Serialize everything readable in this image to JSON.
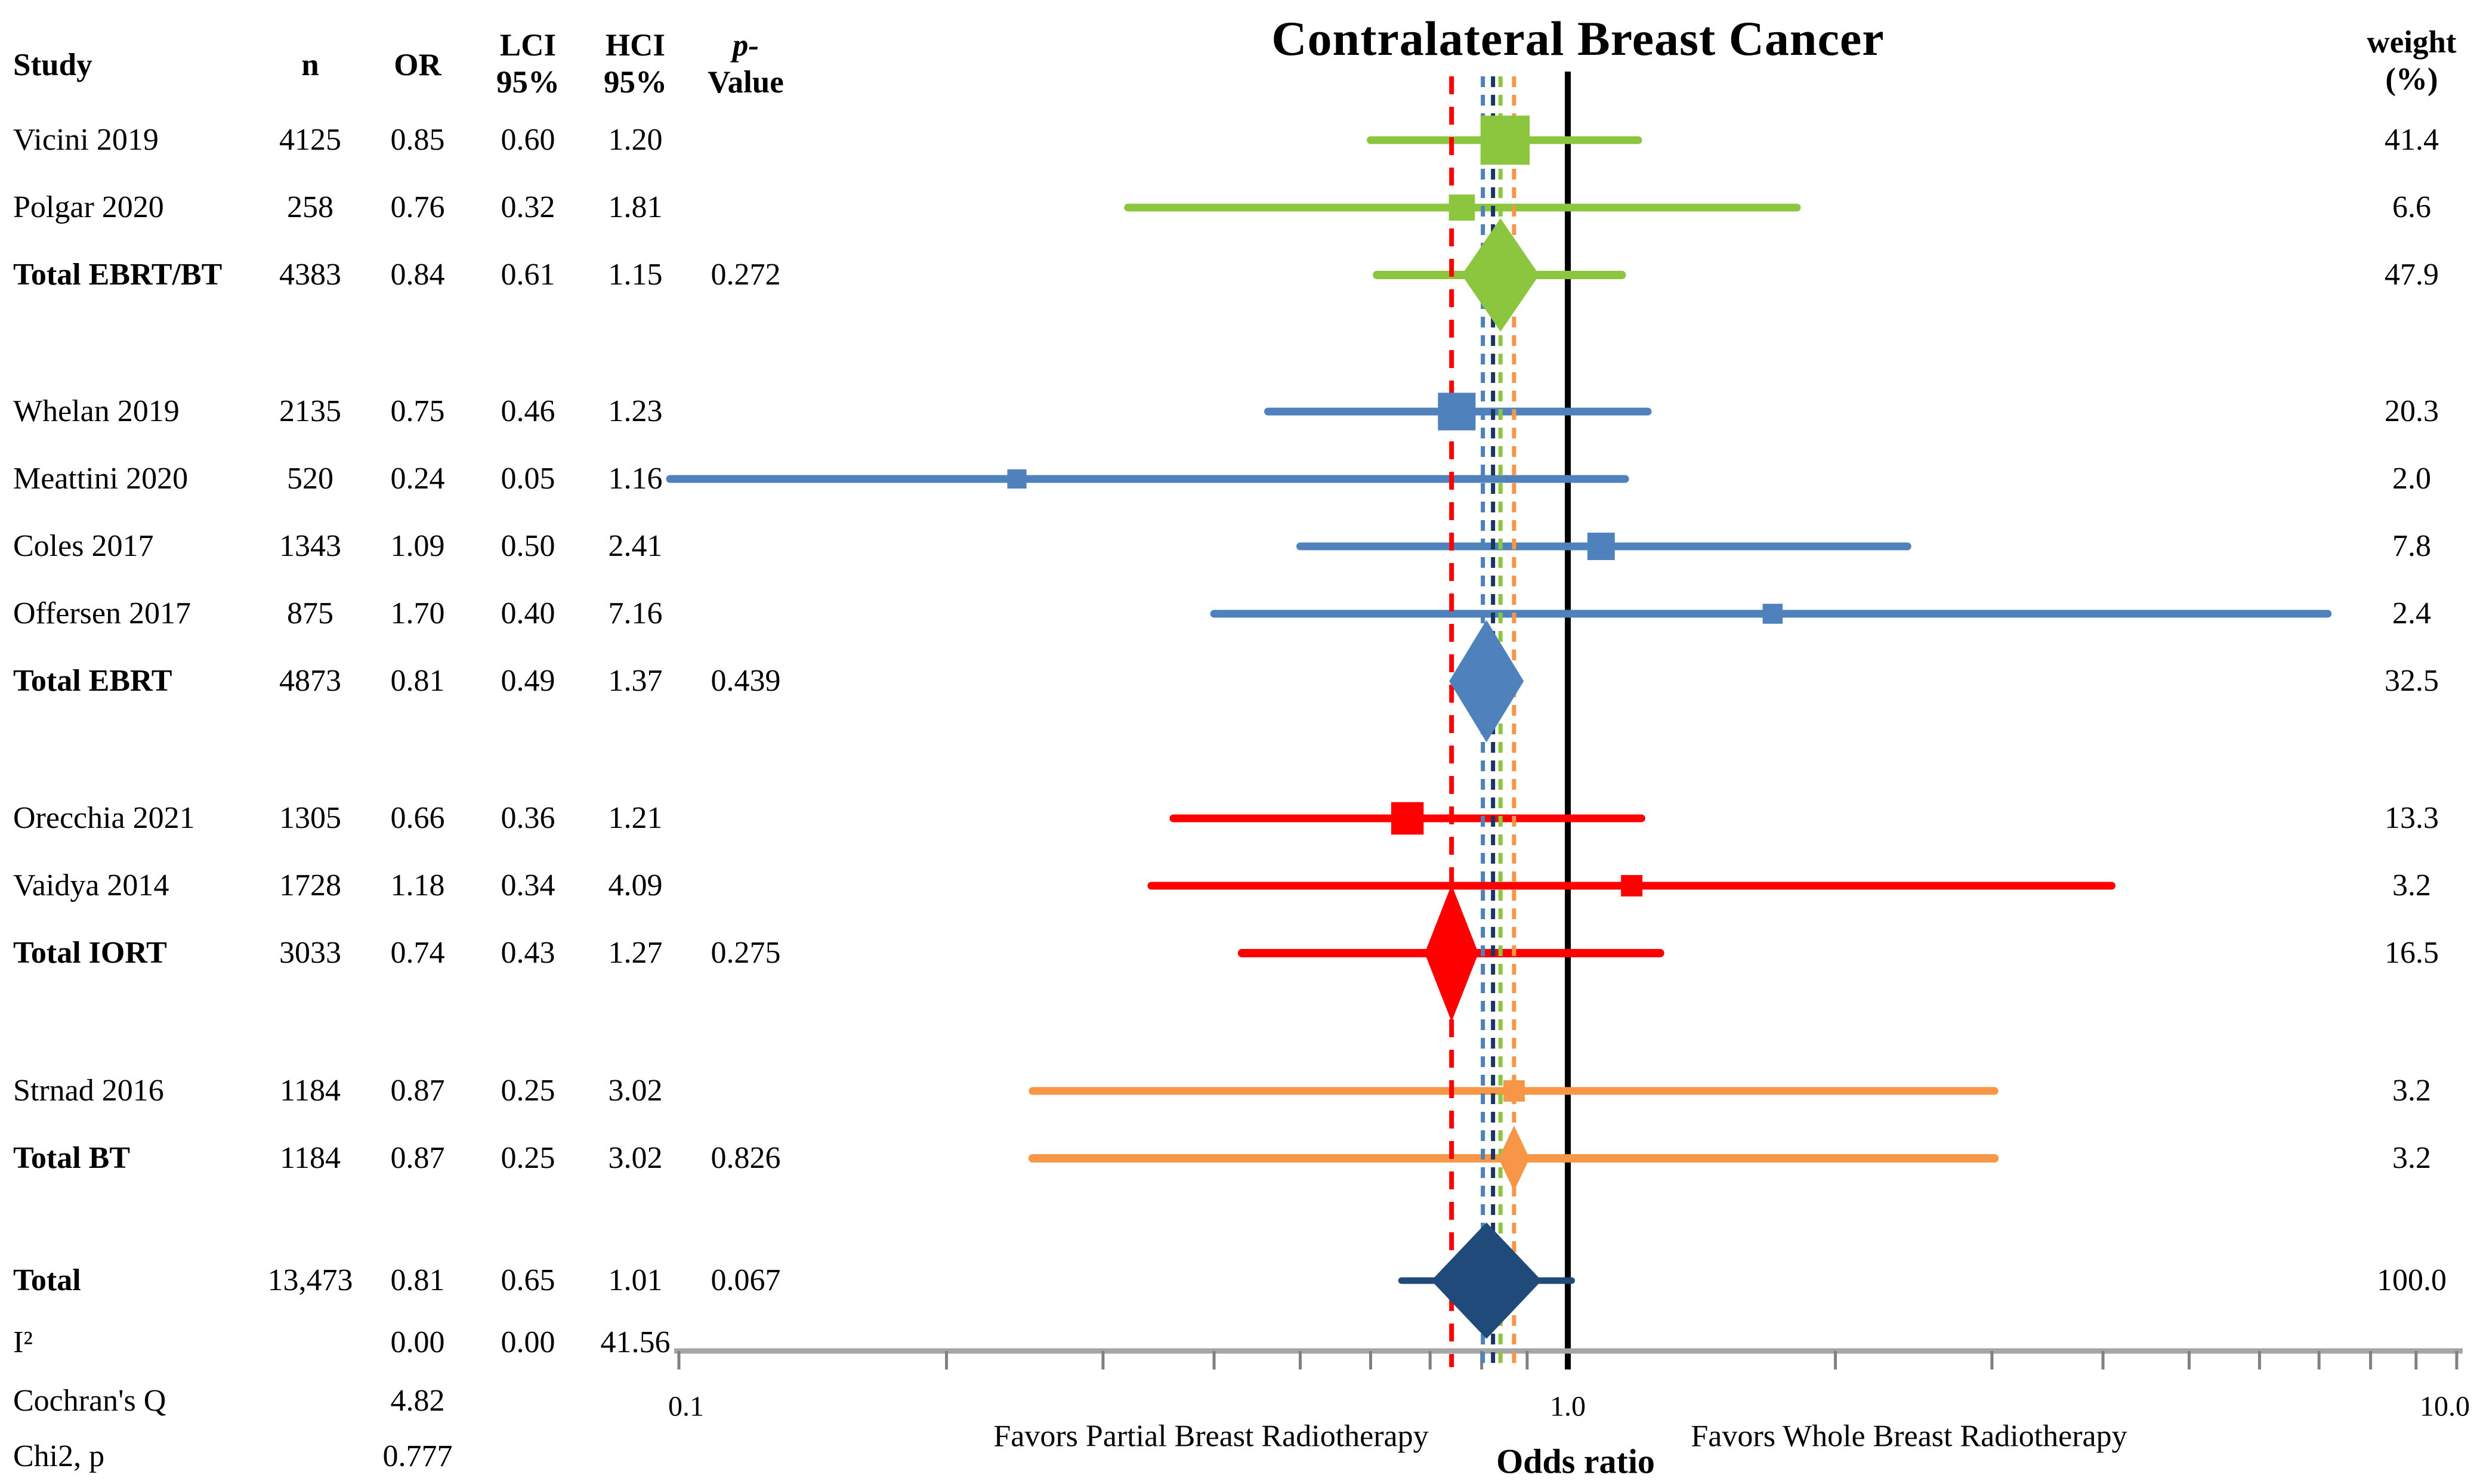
{
  "title": "Contralateral Breast Cancer",
  "columns": {
    "study": "Study",
    "n": "n",
    "or": "OR",
    "lci_l1": "LCI",
    "lci_l2": "95%",
    "hci_l1": "HCI",
    "hci_l2": "95%",
    "p_l1": "p-",
    "p_l2": "Value",
    "weight_l1": "weight",
    "weight_l2": "(%)"
  },
  "axis": {
    "tick_01": "0.1",
    "tick_1": "1.0",
    "tick_10": "10.0",
    "xlabel": "Odds ratio",
    "left_note": "Favors Partial Breast Radiotherapy",
    "right_note": "Favors Whole Breast Radiotherapy"
  },
  "colors": {
    "green": "#8CC63F",
    "steel_blue": "#4F81BD",
    "red": "#FF0000",
    "orange": "#F79646",
    "navy": "#1F4A7A",
    "navy_dash": "#17375E",
    "axis_gray": "#A6A6A6",
    "tick_gray": "#808080",
    "center_line": "#000000"
  },
  "chart_data": {
    "type": "forest",
    "scale": "log10",
    "xlim": [
      0.1,
      10.0
    ],
    "axis_minor_ticks": [
      0.1,
      0.2,
      0.3,
      0.4,
      0.5,
      0.6,
      0.7,
      0.8,
      0.9,
      1.0,
      2.0,
      3.0,
      4.0,
      5.0,
      6.0,
      7.0,
      8.0,
      9.0,
      10.0
    ],
    "rows": [
      {
        "study": "Vicini 2019",
        "n": "4125",
        "or": "0.85",
        "lci": "0.60",
        "hci": "1.20",
        "p": "",
        "weight": "41.4",
        "kind": "study",
        "color": "green"
      },
      {
        "study": "Polgar 2020",
        "n": "258",
        "or": "0.76",
        "lci": "0.32",
        "hci": "1.81",
        "p": "",
        "weight": "6.6",
        "kind": "study",
        "color": "green"
      },
      {
        "study": "Total EBRT/BT",
        "n": "4383",
        "or": "0.84",
        "lci": "0.61",
        "hci": "1.15",
        "p": "0.272",
        "weight": "47.9",
        "kind": "subtotal",
        "color": "green",
        "dw": 130,
        "dh": 190
      },
      {
        "study": "Whelan 2019",
        "n": "2135",
        "or": "0.75",
        "lci": "0.46",
        "hci": "1.23",
        "p": "",
        "weight": "20.3",
        "kind": "study",
        "color": "steel_blue"
      },
      {
        "study": "Meattini 2020",
        "n": "520",
        "or": "0.24",
        "lci": "0.05",
        "hci": "1.16",
        "p": "",
        "weight": "2.0",
        "kind": "study",
        "color": "steel_blue"
      },
      {
        "study": "Coles 2017",
        "n": "1343",
        "or": "1.09",
        "lci": "0.50",
        "hci": "2.41",
        "p": "",
        "weight": "7.8",
        "kind": "study",
        "color": "steel_blue"
      },
      {
        "study": "Offersen 2017",
        "n": "875",
        "or": "1.70",
        "lci": "0.40",
        "hci": "7.16",
        "p": "",
        "weight": "2.4",
        "kind": "study",
        "color": "steel_blue"
      },
      {
        "study": "Total EBRT",
        "n": "4873",
        "or": "0.81",
        "lci": "0.49",
        "hci": "1.37",
        "p": "0.439",
        "weight": "32.5",
        "kind": "subtotal",
        "color": "steel_blue",
        "dw": 125,
        "dh": 205,
        "no_line": true
      },
      {
        "study": "Orecchia 2021",
        "n": "1305",
        "or": "0.66",
        "lci": "0.36",
        "hci": "1.21",
        "p": "",
        "weight": "13.3",
        "kind": "study",
        "color": "red"
      },
      {
        "study": "Vaidya 2014",
        "n": "1728",
        "or": "1.18",
        "lci": "0.34",
        "hci": "4.09",
        "p": "",
        "weight": "3.2",
        "kind": "study",
        "color": "red"
      },
      {
        "study": "Total IORT",
        "n": "3033",
        "or": "0.74",
        "lci": "0.43",
        "hci": "1.27",
        "p": "0.275",
        "weight": "16.5",
        "kind": "subtotal",
        "color": "red",
        "dw": 90,
        "dh": 230
      },
      {
        "study": "Strnad 2016",
        "n": "1184",
        "or": "0.87",
        "lci": "0.25",
        "hci": "3.02",
        "p": "",
        "weight": "3.2",
        "kind": "study",
        "color": "orange"
      },
      {
        "study": "Total BT",
        "n": "1184",
        "or": "0.87",
        "lci": "0.25",
        "hci": "3.02",
        "p": "0.826",
        "weight": "3.2",
        "kind": "subtotal",
        "color": "orange",
        "dw": 52,
        "dh": 110
      },
      {
        "study": "Total",
        "n": "13,473",
        "or": "0.81",
        "lci": "0.65",
        "hci": "1.01",
        "p": "0.067",
        "weight": "100.0",
        "kind": "grand",
        "color": "navy",
        "dw": 185,
        "dh": 195
      }
    ],
    "stats": [
      {
        "label": "I²",
        "or": "0.00",
        "lci": "0.00",
        "hci": "41.56"
      },
      {
        "label": "Cochran's Q",
        "or": "4.82",
        "lci": "",
        "hci": ""
      },
      {
        "label": "Chi2, p",
        "or": "0.777",
        "lci": "",
        "hci": ""
      }
    ],
    "reference_lines": [
      {
        "value": 0.74,
        "color": "red"
      },
      {
        "value": 0.81,
        "color": "steel_blue"
      },
      {
        "value": 0.81,
        "color": "navy_dash"
      },
      {
        "value": 0.84,
        "color": "green"
      },
      {
        "value": 0.87,
        "color": "orange"
      }
    ]
  }
}
